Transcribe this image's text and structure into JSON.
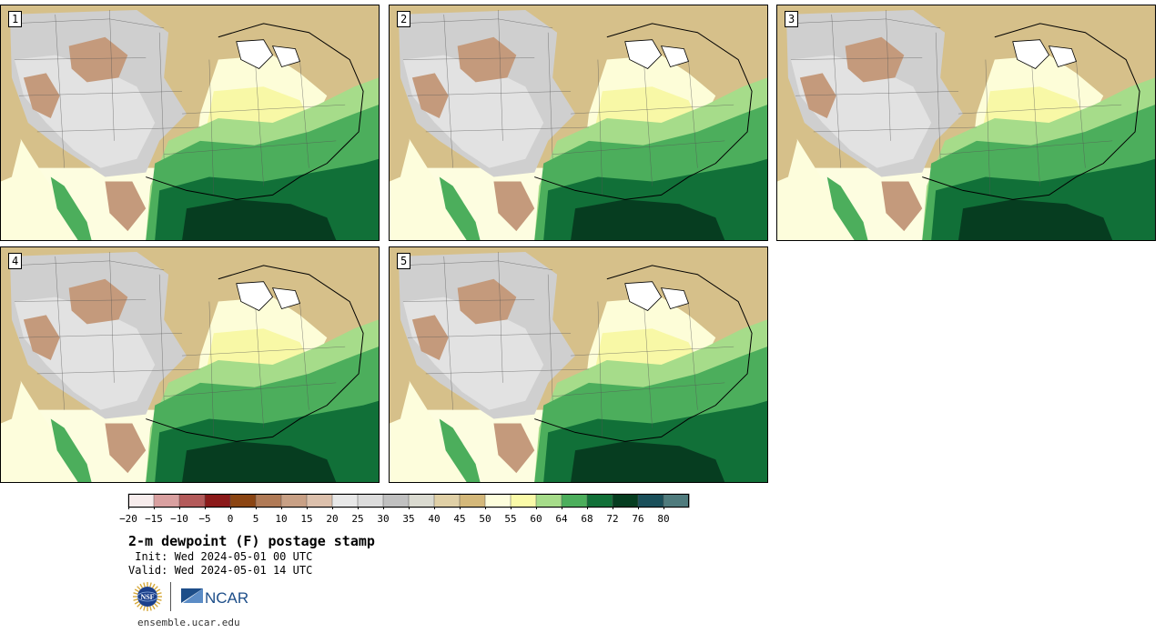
{
  "panels": [
    {
      "label": "1"
    },
    {
      "label": "2"
    },
    {
      "label": "3"
    },
    {
      "label": "4"
    },
    {
      "label": "5"
    }
  ],
  "colorbar": {
    "colors": [
      "#f7ecec",
      "#d9a0a0",
      "#b35a5a",
      "#8b1a1a",
      "#8b4513",
      "#b07a56",
      "#c8a085",
      "#dcc0ac",
      "#e8e8e8",
      "#dcdcdc",
      "#c0c0c0",
      "#dadad0",
      "#e0d0a6",
      "#d4b87a",
      "#fdfddc",
      "#fafaa8",
      "#a6dc8a",
      "#4cae5c",
      "#117038",
      "#063d20",
      "#1a4f5a",
      "#4f7b7d"
    ],
    "ticks": [
      "−20",
      "−15",
      "−10",
      "−5",
      "0",
      "5",
      "10",
      "15",
      "20",
      "25",
      "30",
      "35",
      "40",
      "45",
      "50",
      "55",
      "60",
      "64",
      "68",
      "72",
      "76",
      "80"
    ]
  },
  "title": "2-m dewpoint (F) postage stamp",
  "init_line": " Init: Wed 2024-05-01 00 UTC",
  "valid_line": "Valid: Wed 2024-05-01 14 UTC",
  "logos": {
    "nsf": "NSF",
    "ncar": "NCAR"
  },
  "website": "ensemble.ucar.edu"
}
